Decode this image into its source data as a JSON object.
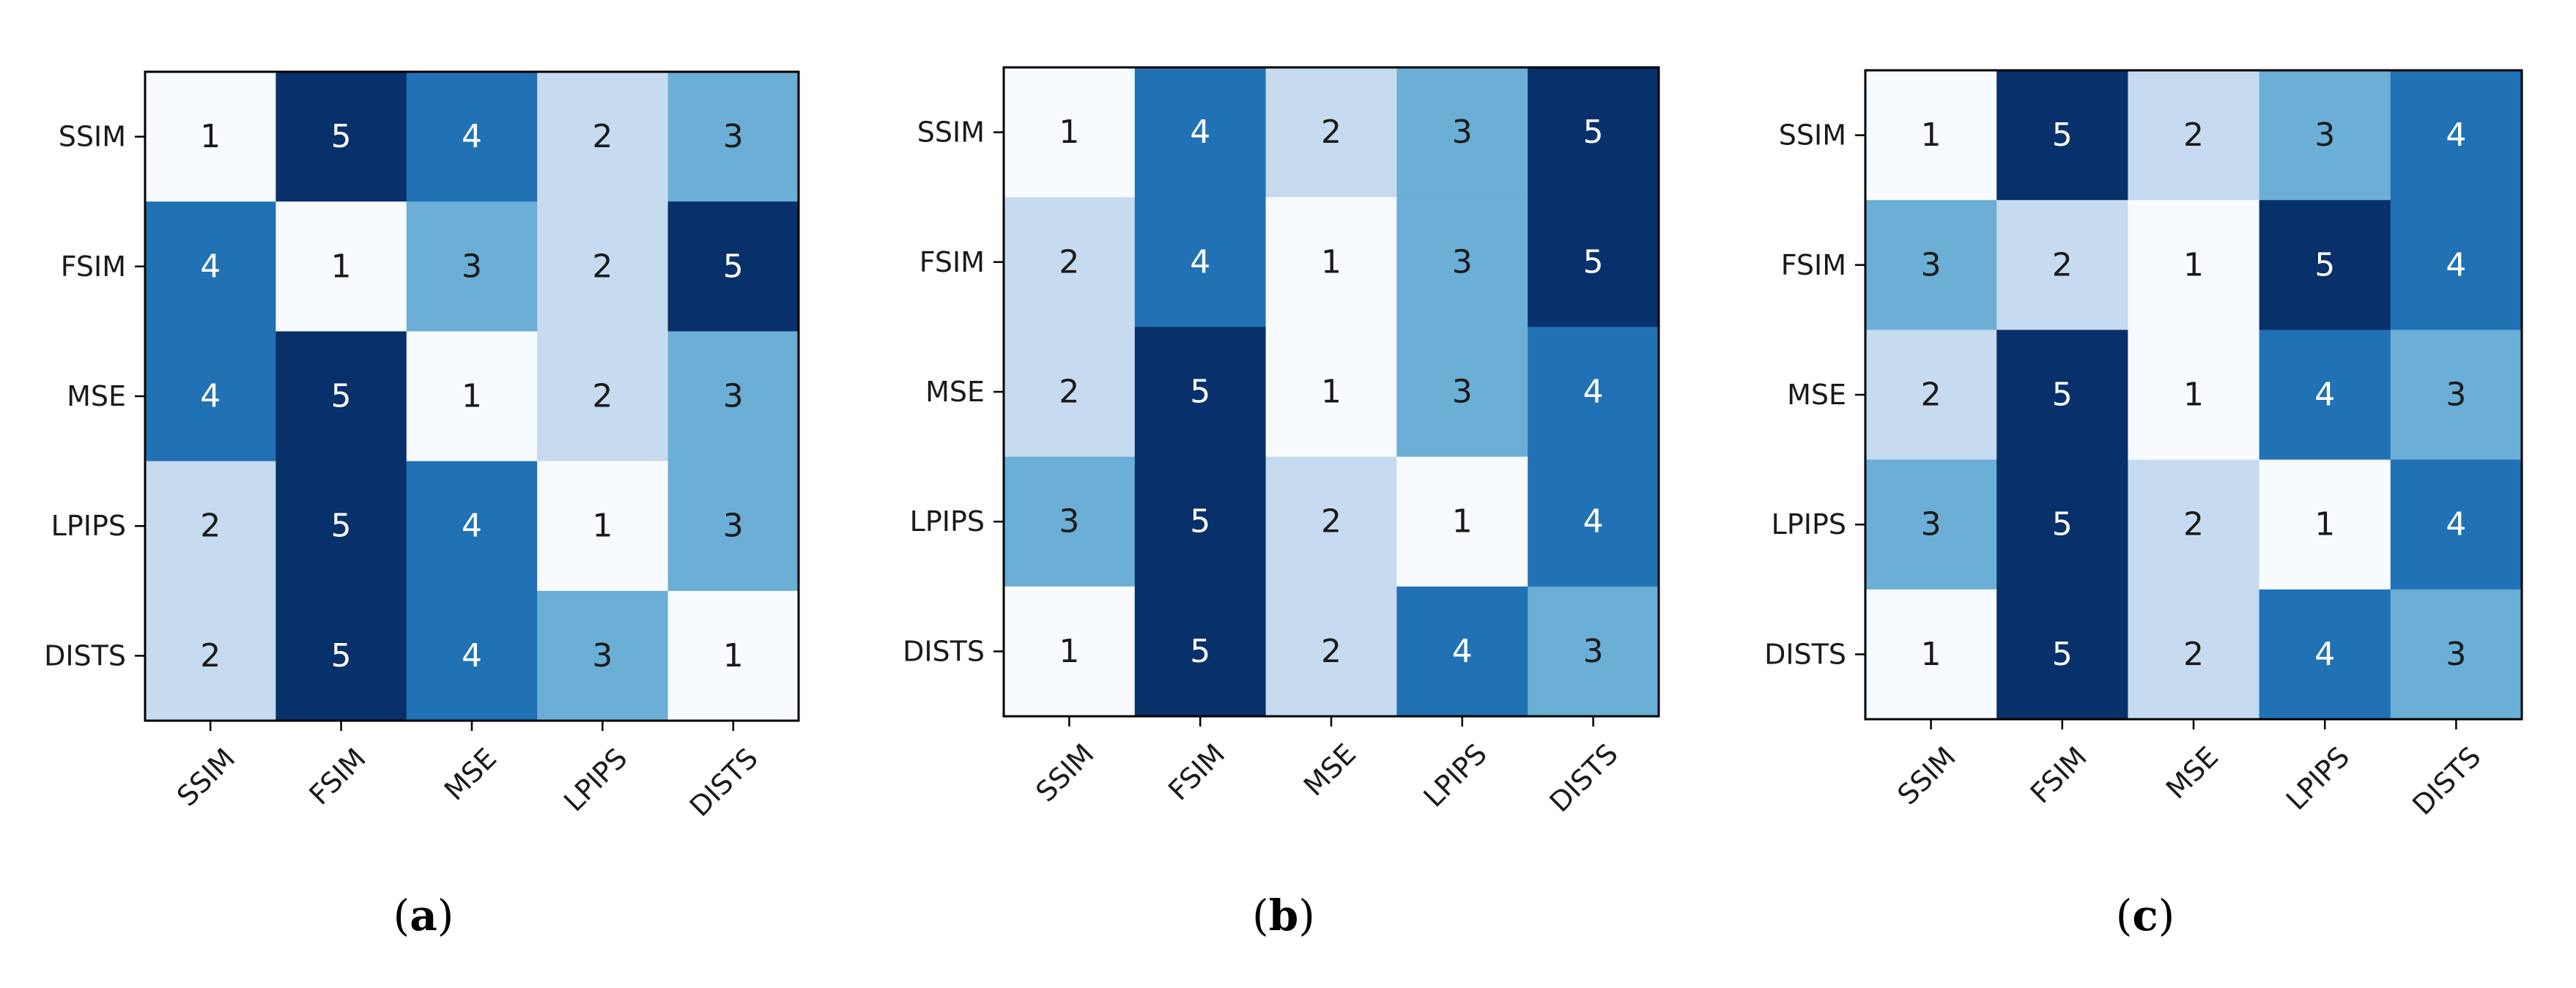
{
  "chart_data": [
    {
      "type": "heatmap",
      "panel": "a",
      "caption": "a",
      "row_labels": [
        "SSIM",
        "FSIM",
        "MSE",
        "LPIPS",
        "DISTS"
      ],
      "col_labels": [
        "SSIM",
        "FSIM",
        "MSE",
        "LPIPS",
        "DISTS"
      ],
      "values": [
        [
          1,
          5,
          4,
          2,
          3
        ],
        [
          4,
          1,
          3,
          2,
          5
        ],
        [
          4,
          5,
          1,
          2,
          3
        ],
        [
          2,
          5,
          4,
          1,
          3
        ],
        [
          2,
          5,
          4,
          3,
          1
        ]
      ],
      "value_range": [
        1,
        5
      ],
      "colormap": "Blues"
    },
    {
      "type": "heatmap",
      "panel": "b",
      "caption": "b",
      "row_labels": [
        "SSIM",
        "FSIM",
        "MSE",
        "LPIPS",
        "DISTS"
      ],
      "col_labels": [
        "SSIM",
        "FSIM",
        "MSE",
        "LPIPS",
        "DISTS"
      ],
      "values": [
        [
          1,
          4,
          2,
          3,
          5
        ],
        [
          2,
          4,
          1,
          3,
          5
        ],
        [
          2,
          5,
          1,
          3,
          4
        ],
        [
          3,
          5,
          2,
          1,
          4
        ],
        [
          1,
          5,
          2,
          4,
          3
        ]
      ],
      "value_range": [
        1,
        5
      ],
      "colormap": "Blues"
    },
    {
      "type": "heatmap",
      "panel": "c",
      "caption": "c",
      "row_labels": [
        "SSIM",
        "FSIM",
        "MSE",
        "LPIPS",
        "DISTS"
      ],
      "col_labels": [
        "SSIM",
        "FSIM",
        "MSE",
        "LPIPS",
        "DISTS"
      ],
      "values": [
        [
          1,
          5,
          2,
          3,
          4
        ],
        [
          3,
          2,
          1,
          5,
          4
        ],
        [
          2,
          5,
          1,
          4,
          3
        ],
        [
          3,
          5,
          2,
          1,
          4
        ],
        [
          1,
          5,
          2,
          4,
          3
        ]
      ],
      "value_range": [
        1,
        5
      ],
      "colormap": "Blues"
    }
  ],
  "colors": {
    "level_1": "#f7fbff",
    "level_2": "#c6dbef",
    "level_3": "#6baed6",
    "level_4": "#2171b5",
    "level_5": "#08306b",
    "text_dark": "#1a1a1a",
    "text_light": "#ffffff",
    "frame": "#000000"
  }
}
